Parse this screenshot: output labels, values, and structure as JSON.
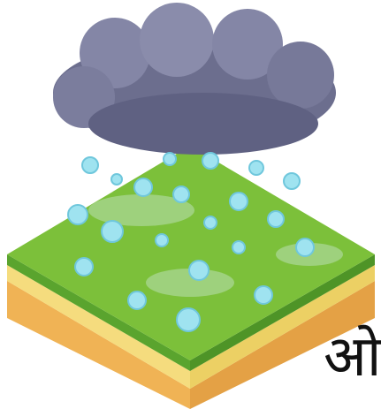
{
  "caption": {
    "text": "ओ"
  }
}
